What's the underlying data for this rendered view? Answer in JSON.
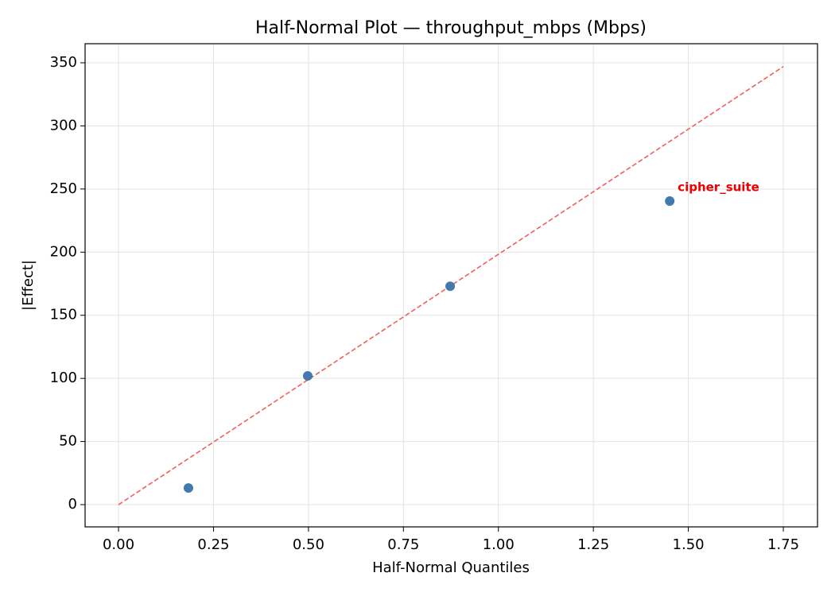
{
  "chart_data": {
    "type": "scatter",
    "title": "Half-Normal Plot — throughput_mbps (Mbps)",
    "x_label": "Half-Normal Quantiles",
    "y_label": "|Effect|",
    "x": [
      0.184,
      0.498,
      0.873,
      1.451
    ],
    "values": [
      13.2,
      102,
      173,
      240.5
    ],
    "color": "#4479b0",
    "reference_line": {
      "x": [
        0,
        1.75
      ],
      "y": [
        0,
        347
      ],
      "color": "#f0605d"
    },
    "annotations": [
      {
        "text": "cipher_suite",
        "x": 1.451,
        "y": 240.5,
        "color": "#ee0000"
      }
    ],
    "xlim": [
      -0.088,
      1.84
    ],
    "ylim": [
      -17.6,
      365.1
    ],
    "xticks": [
      {
        "value": 0,
        "label": "0.00"
      },
      {
        "value": 0.25,
        "label": "0.25"
      },
      {
        "value": 0.5,
        "label": "0.50"
      },
      {
        "value": 0.75,
        "label": "0.75"
      },
      {
        "value": 1,
        "label": "1.00"
      },
      {
        "value": 1.25,
        "label": "1.25"
      },
      {
        "value": 1.5,
        "label": "1.50"
      },
      {
        "value": 1.75,
        "label": "1.75"
      }
    ],
    "yticks": [
      0,
      50,
      100,
      150,
      200,
      250,
      300,
      350
    ],
    "grid": true
  }
}
